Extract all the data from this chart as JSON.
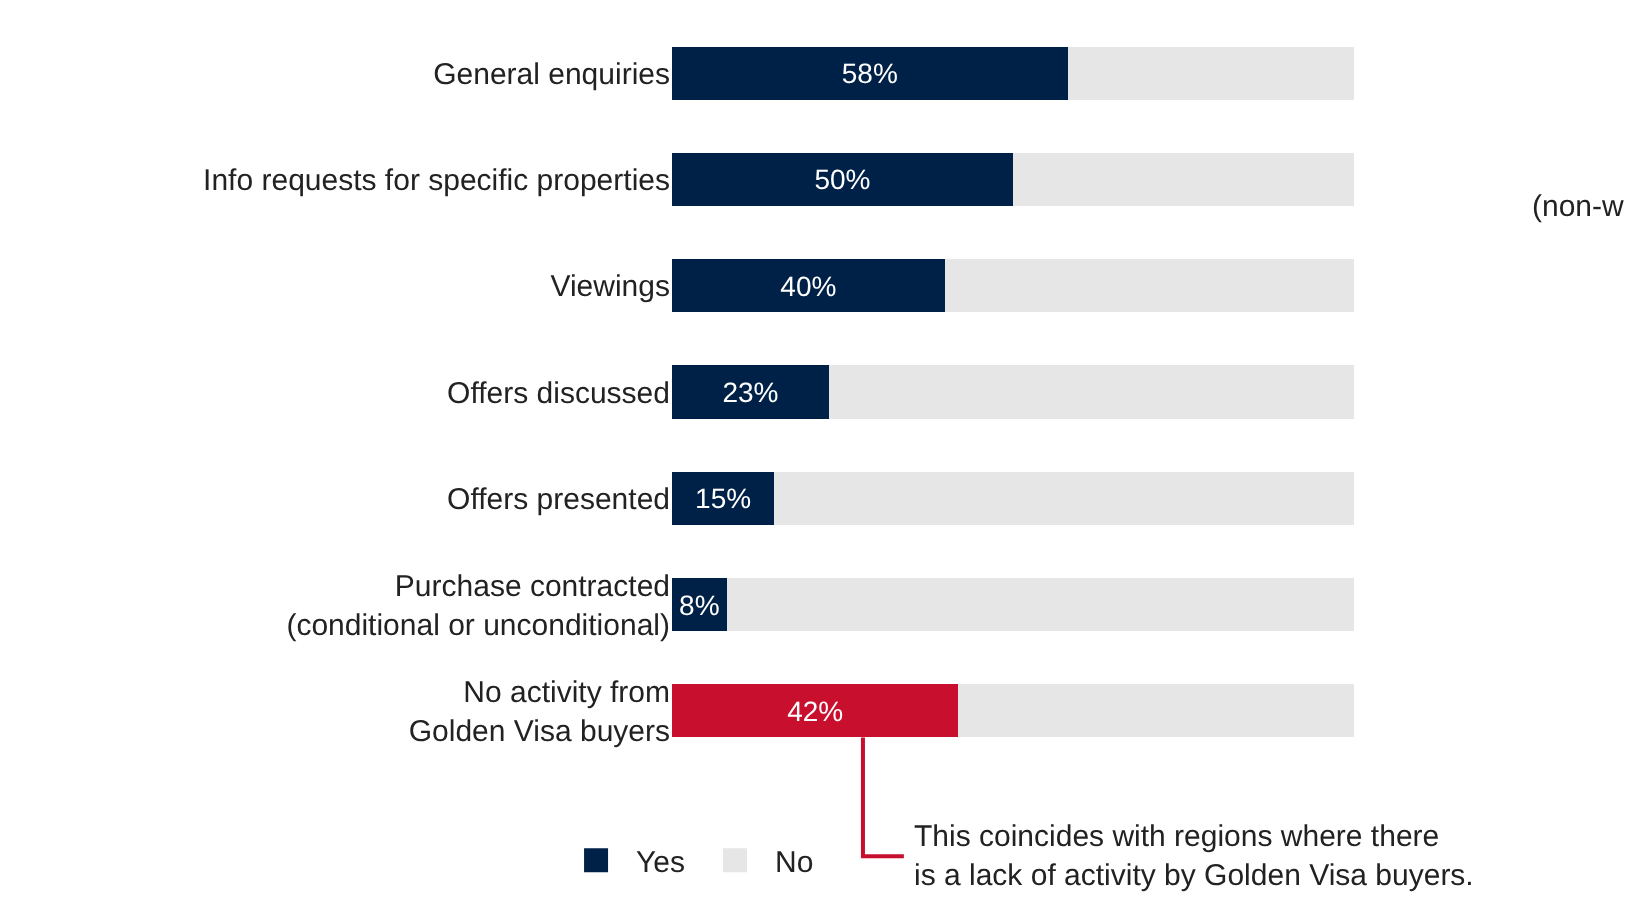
{
  "chart_data": {
    "type": "bar",
    "orientation": "horizontal",
    "stacked": true,
    "categories": [
      "General enquiries",
      "Info requests for specific properties",
      "Viewings",
      "Offers discussed",
      "Offers presented",
      "Purchase contracted\n(conditional or unconditional)",
      "No activity from\nGolden Visa buyers"
    ],
    "series": [
      {
        "name": "Yes",
        "color": "#002147",
        "colors": [
          "#002147",
          "#002147",
          "#002147",
          "#002147",
          "#002147",
          "#002147",
          "#c8102e"
        ],
        "values": [
          58,
          50,
          40,
          23,
          15,
          8,
          42
        ],
        "value_labels": [
          "58%",
          "50%",
          "40%",
          "23%",
          "15%",
          "8%",
          "42%"
        ]
      },
      {
        "name": "No",
        "color": "#e6e6e6",
        "values": [
          42,
          50,
          60,
          77,
          85,
          92,
          58
        ]
      }
    ],
    "xlim": [
      0,
      100
    ],
    "tick_labels": "y",
    "legend": "bottom",
    "annotations": [
      "This coincides with regions where there\nis a lack of activity by Golden Visa buyers.",
      "(non-w"
    ]
  }
}
